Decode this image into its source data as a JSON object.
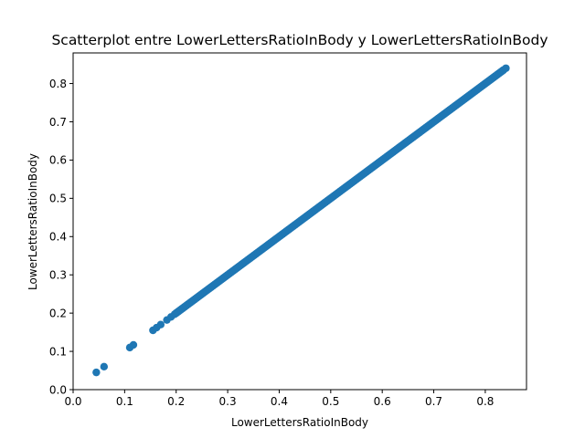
{
  "chart_data": {
    "type": "scatter",
    "title": "Scatterplot entre LowerLettersRatioInBody y LowerLettersRatioInBody",
    "xlabel": "LowerLettersRatioInBody",
    "ylabel": "LowerLettersRatioInBody",
    "xlim": [
      0.0,
      0.88
    ],
    "ylim": [
      -0.0,
      0.88
    ],
    "xticks": [
      "0.0",
      "0.1",
      "0.2",
      "0.3",
      "0.4",
      "0.5",
      "0.6",
      "0.7",
      "0.8"
    ],
    "yticks": [
      "0.0",
      "0.1",
      "0.2",
      "0.3",
      "0.4",
      "0.5",
      "0.6",
      "0.7",
      "0.8"
    ],
    "grid": false,
    "legend": "none",
    "color": "#1f77b4",
    "points": [
      {
        "x": 0.045,
        "y": 0.045
      },
      {
        "x": 0.06,
        "y": 0.06
      },
      {
        "x": 0.11,
        "y": 0.11
      },
      {
        "x": 0.117,
        "y": 0.117
      },
      {
        "x": 0.155,
        "y": 0.155
      },
      {
        "x": 0.162,
        "y": 0.162
      },
      {
        "x": 0.17,
        "y": 0.17
      },
      {
        "x": 0.182,
        "y": 0.182
      },
      {
        "x": 0.19,
        "y": 0.19
      },
      {
        "x": 0.197,
        "y": 0.197
      },
      {
        "x": 0.84,
        "y": 0.84
      }
    ],
    "dense_segment": {
      "x_start": 0.2,
      "x_end": 0.835,
      "slope": 1.0,
      "intercept": 0.0
    }
  }
}
